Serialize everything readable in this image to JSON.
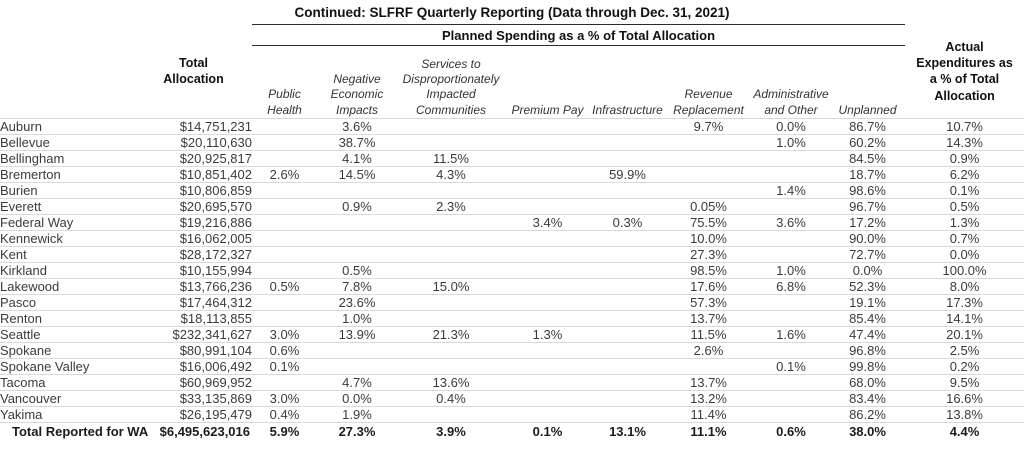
{
  "title": "Continued: SLFRF Quarterly Reporting (Data through Dec. 31, 2021)",
  "colors": {
    "background": "#ffffff",
    "text": "#3b3b3b",
    "heading_text": "#111111",
    "row_divider": "#d9d9d9",
    "group_header_rule": "#2b2b2b"
  },
  "chart_data": {
    "type": "table",
    "title": "Continued: SLFRF Quarterly Reporting (Data through Dec. 31, 2021)",
    "group_header": "Planned Spending as a % of Total Allocation",
    "column_headers": {
      "city": "",
      "total_allocation": "Total Allocation",
      "planned": [
        "Public Health",
        "Negative Economic Impacts",
        "Services to Disproportionately Impacted Communities",
        "Premium Pay",
        "Infrastructure",
        "Revenue Replacement",
        "Administrative and Other",
        "Unplanned"
      ],
      "actual": "Actual Expenditures as a % of Total Allocation"
    },
    "rows": [
      [
        "Auburn",
        "$14,751,231",
        "",
        "3.6%",
        "",
        "",
        "",
        "9.7%",
        "0.0%",
        "86.7%",
        "10.7%"
      ],
      [
        "Bellevue",
        "$20,110,630",
        "",
        "38.7%",
        "",
        "",
        "",
        "",
        "1.0%",
        "60.2%",
        "14.3%"
      ],
      [
        "Bellingham",
        "$20,925,817",
        "",
        "4.1%",
        "11.5%",
        "",
        "",
        "",
        "",
        "84.5%",
        "0.9%"
      ],
      [
        "Bremerton",
        "$10,851,402",
        "2.6%",
        "14.5%",
        "4.3%",
        "",
        "59.9%",
        "",
        "",
        "18.7%",
        "6.2%"
      ],
      [
        "Burien",
        "$10,806,859",
        "",
        "",
        "",
        "",
        "",
        "",
        "1.4%",
        "98.6%",
        "0.1%"
      ],
      [
        "Everett",
        "$20,695,570",
        "",
        "0.9%",
        "2.3%",
        "",
        "",
        "0.05%",
        "",
        "96.7%",
        "0.5%"
      ],
      [
        "Federal Way",
        "$19,216,886",
        "",
        "",
        "",
        "3.4%",
        "0.3%",
        "75.5%",
        "3.6%",
        "17.2%",
        "1.3%"
      ],
      [
        "Kennewick",
        "$16,062,005",
        "",
        "",
        "",
        "",
        "",
        "10.0%",
        "",
        "90.0%",
        "0.7%"
      ],
      [
        "Kent",
        "$28,172,327",
        "",
        "",
        "",
        "",
        "",
        "27.3%",
        "",
        "72.7%",
        "0.0%"
      ],
      [
        "Kirkland",
        "$10,155,994",
        "",
        "0.5%",
        "",
        "",
        "",
        "98.5%",
        "1.0%",
        "0.0%",
        "100.0%"
      ],
      [
        "Lakewood",
        "$13,766,236",
        "0.5%",
        "7.8%",
        "15.0%",
        "",
        "",
        "17.6%",
        "6.8%",
        "52.3%",
        "8.0%"
      ],
      [
        "Pasco",
        "$17,464,312",
        "",
        "23.6%",
        "",
        "",
        "",
        "57.3%",
        "",
        "19.1%",
        "17.3%"
      ],
      [
        "Renton",
        "$18,113,855",
        "",
        "1.0%",
        "",
        "",
        "",
        "13.7%",
        "",
        "85.4%",
        "14.1%"
      ],
      [
        "Seattle",
        "$232,341,627",
        "3.0%",
        "13.9%",
        "21.3%",
        "1.3%",
        "",
        "11.5%",
        "1.6%",
        "47.4%",
        "20.1%"
      ],
      [
        "Spokane",
        "$80,991,104",
        "0.6%",
        "",
        "",
        "",
        "",
        "2.6%",
        "",
        "96.8%",
        "2.5%"
      ],
      [
        "Spokane Valley",
        "$16,006,492",
        "0.1%",
        "",
        "",
        "",
        "",
        "",
        "0.1%",
        "99.8%",
        "0.2%"
      ],
      [
        "Tacoma",
        "$60,969,952",
        "",
        "4.7%",
        "13.6%",
        "",
        "",
        "13.7%",
        "",
        "68.0%",
        "9.5%"
      ],
      [
        "Vancouver",
        "$33,135,869",
        "3.0%",
        "0.0%",
        "0.4%",
        "",
        "",
        "13.2%",
        "",
        "83.4%",
        "16.6%"
      ],
      [
        "Yakima",
        "$26,195,479",
        "0.4%",
        "1.9%",
        "",
        "",
        "",
        "11.4%",
        "",
        "86.2%",
        "13.8%"
      ]
    ],
    "total_row": [
      "Total Reported for WA",
      "$6,495,623,016",
      "5.9%",
      "27.3%",
      "3.9%",
      "0.1%",
      "13.1%",
      "11.1%",
      "0.6%",
      "38.0%",
      "4.4%"
    ]
  }
}
